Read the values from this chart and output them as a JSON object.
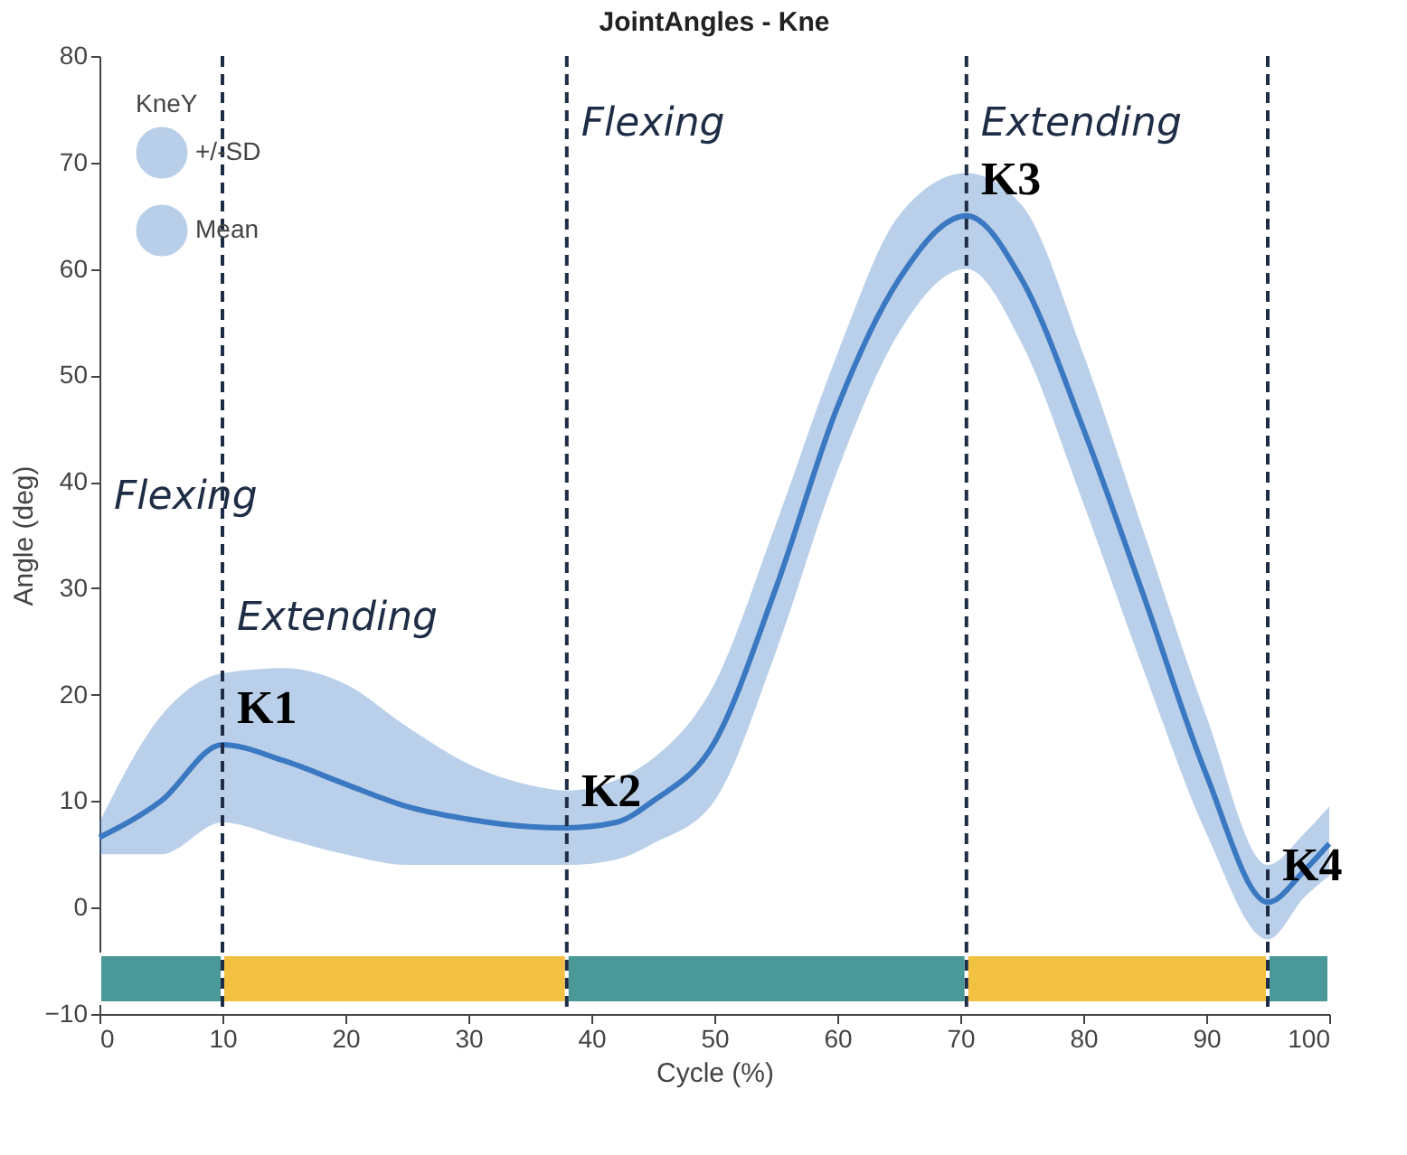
{
  "chart_data": {
    "type": "line",
    "title": "JointAngles - Kne",
    "xlabel": "Cycle (%)",
    "ylabel": "Angle (deg)",
    "legend_title": "KneY",
    "xlim": [
      0,
      100
    ],
    "xticks": [
      0,
      10,
      20,
      30,
      40,
      50,
      60,
      70,
      80,
      90,
      100
    ],
    "ylim": [
      -10,
      80
    ],
    "yticks": [
      -10,
      0,
      10,
      20,
      30,
      40,
      50,
      60,
      70,
      80
    ],
    "grid": false,
    "legend": "top left",
    "marker": "none",
    "line_style": "solid",
    "series": [
      {
        "name": "Mean",
        "color": "#3a78c2",
        "x": [
          0,
          5,
          10,
          15,
          20,
          25,
          30,
          35,
          38,
          42,
          45,
          50,
          55,
          60,
          65,
          70.5,
          75,
          80,
          85,
          90,
          95,
          98,
          100
        ],
        "values": [
          6.6,
          10,
          15.3,
          13.8,
          11.6,
          9.5,
          8.3,
          7.6,
          7.5,
          8,
          10,
          15.5,
          30,
          47,
          59,
          65,
          59,
          45,
          29,
          12.5,
          0.5,
          3.5,
          6
        ],
        "lower": [
          5,
          5,
          8,
          6.5,
          5,
          4,
          4,
          4,
          4,
          4.5,
          6,
          10,
          24,
          41,
          54,
          60,
          53,
          38,
          22,
          7,
          -3,
          1,
          3
        ],
        "upper": [
          8,
          18,
          22,
          22.5,
          21,
          17,
          13.5,
          11.5,
          11,
          12,
          14,
          21,
          36,
          52,
          65,
          69,
          66,
          52,
          35,
          18,
          4,
          7,
          9.5
        ]
      }
    ],
    "ref_lines": [
      {
        "axis": "x",
        "value": 10,
        "label": "K1",
        "color": "#1e2d45",
        "line_style": "dashed"
      },
      {
        "axis": "x",
        "value": 38,
        "label": "K2",
        "color": "#1e2d45",
        "line_style": "dashed"
      },
      {
        "axis": "x",
        "value": 70.5,
        "label": "K3",
        "color": "#1e2d45",
        "line_style": "dashed"
      },
      {
        "axis": "x",
        "value": 95,
        "label": "K4",
        "color": "#1e2d45",
        "line_style": "dashed"
      }
    ],
    "bands": [
      {
        "axis": "x",
        "from": 0,
        "to": 10,
        "color": "#4a9898"
      },
      {
        "axis": "x",
        "from": 10,
        "to": 38,
        "color": "#f2c142"
      },
      {
        "axis": "x",
        "from": 38,
        "to": 70.5,
        "color": "#4a9898"
      },
      {
        "axis": "x",
        "from": 70.5,
        "to": 95,
        "color": "#f2c142"
      },
      {
        "axis": "x",
        "from": 95,
        "to": 100,
        "color": "#4a9898"
      }
    ],
    "annotations": [
      "+/-SD",
      "Flexing",
      "Extending",
      "Flexing",
      "Extending"
    ]
  }
}
